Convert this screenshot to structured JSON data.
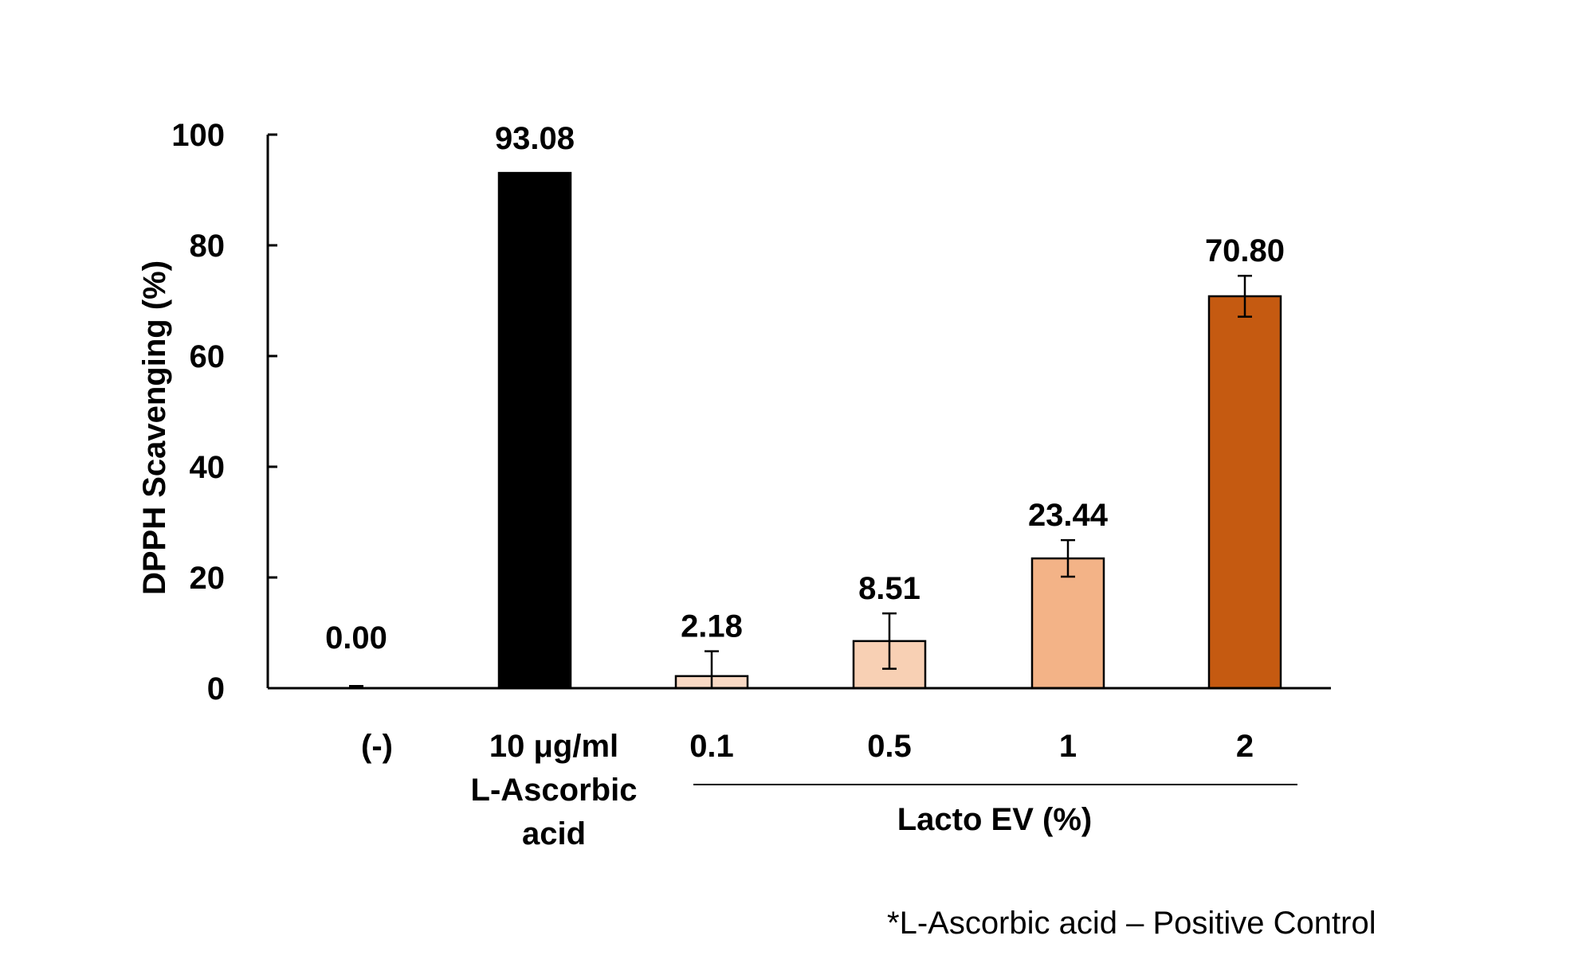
{
  "chart_data": {
    "type": "bar",
    "categories": [
      [
        "(-)"
      ],
      [
        "10 μg/ml",
        "L-Ascorbic",
        "acid"
      ],
      [
        "0.1"
      ],
      [
        "0.5"
      ],
      [
        "1"
      ],
      [
        "2"
      ]
    ],
    "values": [
      0.0,
      93.08,
      2.18,
      8.51,
      23.44,
      70.8
    ],
    "value_labels": [
      "0.00",
      "93.08",
      "2.18",
      "8.51",
      "23.44",
      "70.80"
    ],
    "errors": [
      0.4,
      0,
      4.5,
      5.0,
      3.3,
      3.7
    ],
    "bar_colors": [
      "#ffffff",
      "#000000",
      "#f9d9c4",
      "#f8d0b4",
      "#f3b387",
      "#c55a11"
    ],
    "ylabel": "DPPH Scavenging (%)",
    "xlabel": "",
    "ylim": [
      0,
      100
    ],
    "yticks": [
      0,
      20,
      40,
      60,
      80,
      100
    ],
    "group_label": "Lacto EV (%)",
    "group_categories": [
      2,
      3,
      4,
      5
    ],
    "footnote": "*L-Ascorbic acid – Positive Control",
    "grid": false,
    "legend": "none"
  }
}
